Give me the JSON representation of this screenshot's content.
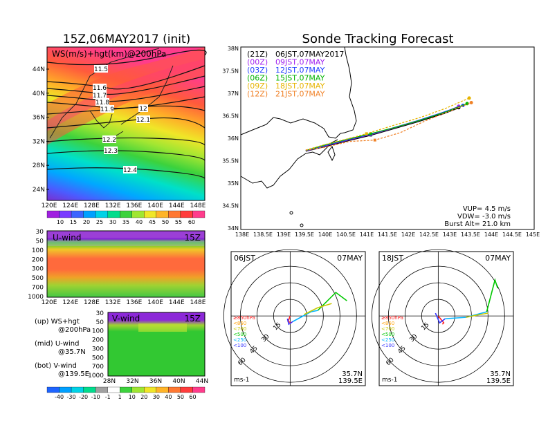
{
  "left_title": "15Z,06MAY2017 (init)",
  "right_title": "Sonde Tracking Forecast",
  "map_panel": {
    "label": "WS(m/s)+hgt(km)@200hPa",
    "lat_ticks": [
      "44N",
      "40N",
      "36N",
      "32N",
      "28N",
      "24N"
    ],
    "lon_ticks": [
      "120E",
      "124E",
      "128E",
      "132E",
      "136E",
      "140E",
      "144E",
      "148E"
    ],
    "contour_labels": [
      "11.5",
      "11.6",
      "11.7",
      "11.8",
      "11.9",
      "12",
      "12.1",
      "12.2",
      "12.3",
      "12.4"
    ]
  },
  "ws_colorbar": {
    "labels": [
      "10",
      "15",
      "20",
      "25",
      "30",
      "35",
      "40",
      "45",
      "50",
      "55",
      "60"
    ]
  },
  "u_panel": {
    "label": "U-wind",
    "time": "15Z",
    "y_ticks": [
      "30",
      "50",
      "100",
      "200",
      "300",
      "500",
      "700",
      "1000"
    ],
    "x_ticks": [
      "120E",
      "124E",
      "128E",
      "132E",
      "136E",
      "140E",
      "144E",
      "148E"
    ]
  },
  "v_panel": {
    "label": "V-wind",
    "time": "15Z",
    "y_ticks": [
      "30",
      "50",
      "100",
      "200",
      "300",
      "500",
      "700",
      "1000"
    ],
    "x_ticks": [
      "28N",
      "32N",
      "36N",
      "40N",
      "44N"
    ]
  },
  "legend_text": {
    "up_1": "(up) WS+hgt",
    "up_2": "@200hPa",
    "mid_1": "(mid) U-wind",
    "mid_2": "@35.7N",
    "bot_1": "(bot) V-wind",
    "bot_2": "@139.5E"
  },
  "uv_colorbar": {
    "labels": [
      "-40",
      "-30",
      "-20",
      "-10",
      "-1",
      "1",
      "10",
      "20",
      "30",
      "40",
      "50",
      "60"
    ]
  },
  "track_panel": {
    "lat_ticks": [
      "38N",
      "37.5N",
      "37N",
      "36.5N",
      "36N",
      "35.5N",
      "35N",
      "34.5N",
      "34N"
    ],
    "lon_ticks": [
      "138E",
      "138.5E",
      "139E",
      "139.5E",
      "140E",
      "140.5E",
      "141E",
      "141.5E",
      "142E",
      "142.5E",
      "143E",
      "143.5E",
      "144E",
      "144.5E",
      "145E"
    ],
    "legend": [
      {
        "z": "(21Z)",
        "jst": "06JST,07MAY2017",
        "color": "#000000"
      },
      {
        "z": "(00Z)",
        "jst": "09JST,07MAY",
        "color": "#a020f0"
      },
      {
        "z": "(03Z)",
        "jst": "12JST,07MAY",
        "color": "#1e3cff"
      },
      {
        "z": "(06Z)",
        "jst": "15JST,07MAY",
        "color": "#00b400"
      },
      {
        "z": "(09Z)",
        "jst": "18JST,07MAY",
        "color": "#e6b400"
      },
      {
        "z": "(12Z)",
        "jst": "21JST,07MAY",
        "color": "#f08228"
      }
    ],
    "params": {
      "vup": "VUP= 4.5 m/s",
      "vdw": "VDW= -3.0 m/s",
      "burst": "Burst Alt= 21.0 km"
    }
  },
  "hodo_left": {
    "time": "06JST",
    "date": "07MAY",
    "lat": "35.7N",
    "lon": "139.5E",
    "unit": "ms-1",
    "ring_labels": [
      "15",
      "30",
      "45",
      "60"
    ],
    "levels": [
      {
        "t": "≥850hPa",
        "c": "#ff2020"
      },
      {
        "t": "<850",
        "c": "#ffa000"
      },
      {
        "t": "<700",
        "c": "#c8c800"
      },
      {
        "t": "<500",
        "c": "#00c800"
      },
      {
        "t": "<250",
        "c": "#00b4ff"
      },
      {
        "t": "<100",
        "c": "#3232ff"
      }
    ]
  },
  "hodo_right": {
    "time": "18JST",
    "date": "07MAY",
    "lat": "35.7N",
    "lon": "139.5E",
    "unit": "ms-1",
    "ring_labels": [
      "15",
      "30",
      "45",
      "60"
    ],
    "levels": [
      {
        "t": "≥850hPa",
        "c": "#ff2020"
      },
      {
        "t": "<850",
        "c": "#ffa000"
      },
      {
        "t": "<700",
        "c": "#c8c800"
      },
      {
        "t": "<500",
        "c": "#00c800"
      },
      {
        "t": "<250",
        "c": "#00b4ff"
      },
      {
        "t": "<100",
        "c": "#3232ff"
      }
    ]
  },
  "chart_data": {
    "type": "line",
    "title": "Sonde Tracking Forecast",
    "xlabel": "",
    "ylabel": "",
    "xlim": [
      138,
      145
    ],
    "ylim": [
      34,
      38
    ],
    "series": [
      {
        "name": "(21Z) 06JST,07MAY2017",
        "x": [
          139.55,
          140.0,
          140.6,
          141.1,
          141.6,
          142.2,
          142.8,
          143.2
        ],
        "y": [
          35.72,
          35.82,
          35.96,
          36.07,
          36.2,
          36.36,
          36.53,
          36.67
        ]
      },
      {
        "name": "(00Z) 09JST,07MAY",
        "x": [
          139.55,
          140.0,
          140.6,
          141.1,
          141.6,
          142.2,
          142.8,
          143.2
        ],
        "y": [
          35.72,
          35.83,
          35.97,
          36.08,
          36.21,
          36.37,
          36.55,
          36.7
        ]
      },
      {
        "name": "(03Z) 12JST,07MAY",
        "x": [
          139.55,
          140.0,
          140.6,
          141.1,
          141.6,
          142.2,
          142.8,
          143.3
        ],
        "y": [
          35.73,
          35.84,
          35.98,
          36.09,
          36.22,
          36.38,
          36.56,
          36.72
        ]
      },
      {
        "name": "(06Z) 15JST,07MAY",
        "x": [
          139.55,
          140.0,
          140.6,
          141.1,
          141.7,
          142.3,
          142.9,
          143.4
        ],
        "y": [
          35.73,
          35.85,
          35.99,
          36.1,
          36.24,
          36.4,
          36.58,
          36.76
        ]
      },
      {
        "name": "(09Z) 18JST,07MAY",
        "x": [
          139.55,
          140.0,
          140.6,
          141.0,
          141.6,
          142.3,
          142.9,
          143.45
        ],
        "y": [
          35.74,
          35.86,
          36.0,
          36.1,
          36.27,
          36.46,
          36.66,
          36.88
        ]
      },
      {
        "name": "(12Z) 21JST,07MAY",
        "x": [
          139.55,
          140.0,
          140.6,
          141.2,
          141.8,
          142.4,
          143.0,
          143.5
        ],
        "y": [
          35.74,
          35.8,
          35.93,
          35.96,
          36.12,
          36.38,
          36.6,
          36.78
        ]
      }
    ]
  }
}
